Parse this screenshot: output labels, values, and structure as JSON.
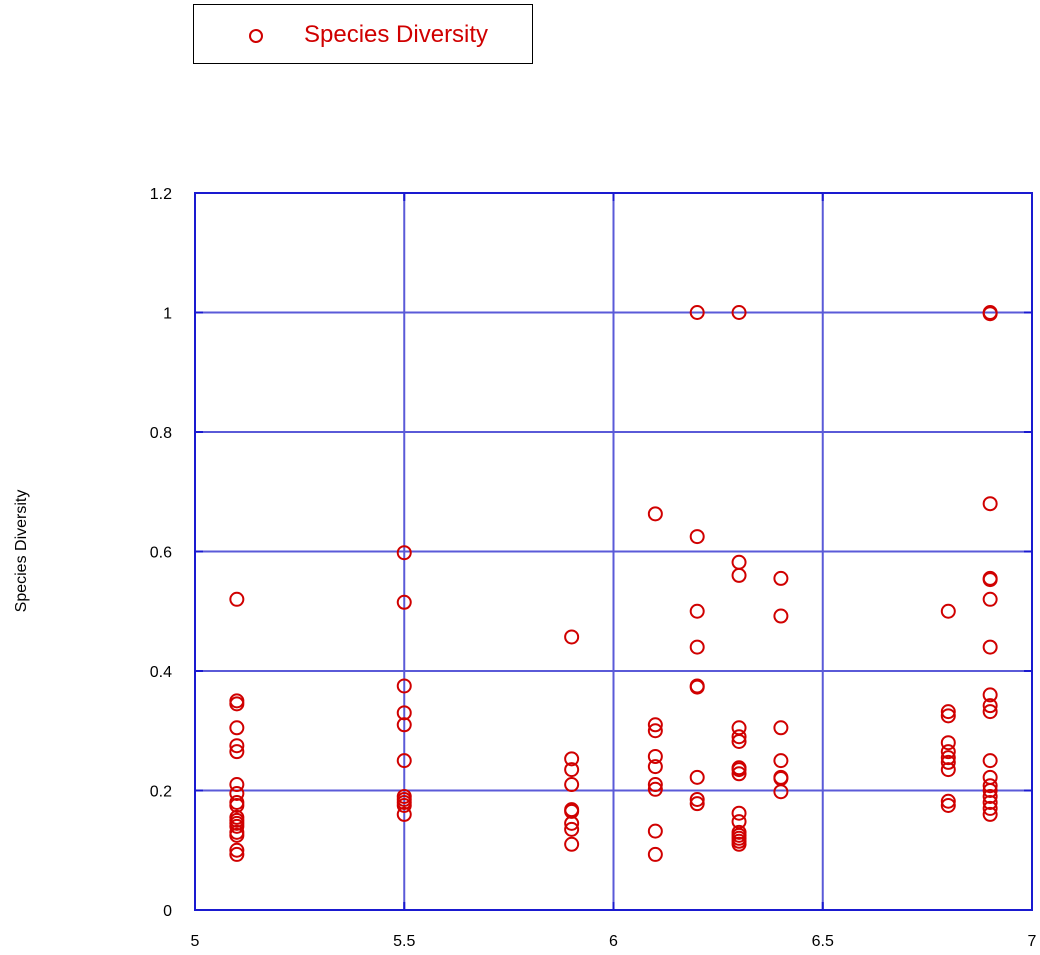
{
  "chart_data": {
    "type": "scatter",
    "title": "",
    "xlabel": "",
    "ylabel": "Species Diversity",
    "xlim": [
      5,
      7
    ],
    "ylim": [
      0,
      1.2
    ],
    "x_ticks": [
      "5",
      "5.5",
      "6",
      "6.5",
      "7"
    ],
    "y_ticks": [
      "0",
      "0.2",
      "0.4",
      "0.6",
      "0.8",
      "1",
      "1.2"
    ],
    "grid": true,
    "legend_position": "top-left",
    "colors": {
      "points": "#d00000",
      "frame": "#1a1ad0",
      "grid": "#5a5ad8"
    },
    "series": [
      {
        "name": "Species Diversity",
        "x": [
          5.1,
          5.1,
          5.1,
          5.1,
          5.1,
          5.1,
          5.1,
          5.1,
          5.1,
          5.1,
          5.1,
          5.1,
          5.1,
          5.1,
          5.1,
          5.1,
          5.1,
          5.1,
          5.5,
          5.5,
          5.5,
          5.5,
          5.5,
          5.5,
          5.5,
          5.5,
          5.5,
          5.5,
          5.5,
          5.9,
          5.9,
          5.9,
          5.9,
          5.9,
          5.9,
          5.9,
          5.9,
          5.9,
          6.1,
          6.1,
          6.1,
          6.1,
          6.1,
          6.1,
          6.1,
          6.1,
          6.1,
          6.2,
          6.2,
          6.2,
          6.2,
          6.2,
          6.2,
          6.2,
          6.2,
          6.2,
          6.3,
          6.3,
          6.3,
          6.3,
          6.3,
          6.3,
          6.3,
          6.3,
          6.3,
          6.3,
          6.3,
          6.3,
          6.3,
          6.3,
          6.3,
          6.3,
          6.4,
          6.4,
          6.4,
          6.4,
          6.4,
          6.4,
          6.4,
          6.8,
          6.8,
          6.8,
          6.8,
          6.8,
          6.8,
          6.8,
          6.8,
          6.8,
          6.8,
          6.9,
          6.9,
          6.9,
          6.9,
          6.9,
          6.9,
          6.9,
          6.9,
          6.9,
          6.9,
          6.9,
          6.9,
          6.9,
          6.9,
          6.9,
          6.9,
          6.9,
          6.9
        ],
        "y": [
          0.52,
          0.35,
          0.345,
          0.305,
          0.275,
          0.265,
          0.21,
          0.195,
          0.18,
          0.175,
          0.155,
          0.15,
          0.145,
          0.14,
          0.13,
          0.125,
          0.1,
          0.093,
          0.598,
          0.515,
          0.375,
          0.33,
          0.31,
          0.25,
          0.19,
          0.185,
          0.18,
          0.175,
          0.16,
          0.457,
          0.253,
          0.235,
          0.21,
          0.168,
          0.165,
          0.145,
          0.135,
          0.11,
          0.663,
          0.31,
          0.3,
          0.257,
          0.24,
          0.21,
          0.202,
          0.132,
          0.093,
          1.0,
          0.625,
          0.5,
          0.44,
          0.375,
          0.373,
          0.222,
          0.185,
          0.178,
          1.0,
          0.582,
          0.56,
          0.305,
          0.29,
          0.282,
          0.238,
          0.235,
          0.228,
          0.162,
          0.148,
          0.13,
          0.125,
          0.12,
          0.115,
          0.11,
          0.555,
          0.492,
          0.305,
          0.25,
          0.222,
          0.22,
          0.198,
          0.5,
          0.332,
          0.325,
          0.28,
          0.265,
          0.255,
          0.247,
          0.235,
          0.182,
          0.175,
          1.0,
          0.998,
          0.68,
          0.555,
          0.553,
          0.52,
          0.44,
          0.36,
          0.342,
          0.332,
          0.25,
          0.222,
          0.208,
          0.2,
          0.19,
          0.18,
          0.17,
          0.16
        ]
      }
    ]
  }
}
